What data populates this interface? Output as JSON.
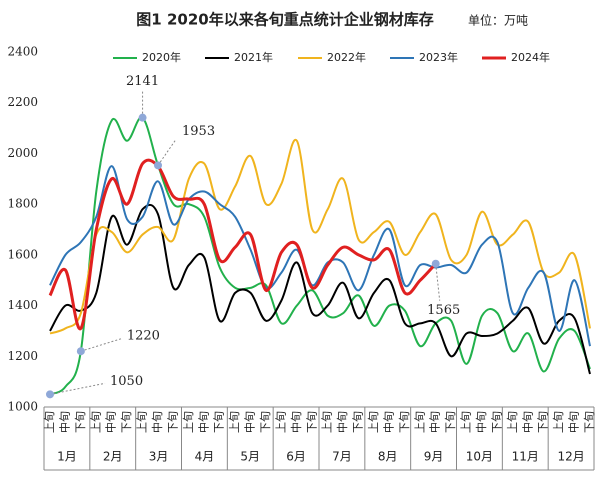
{
  "chart_data": {
    "type": "line",
    "title": "图1  2020年以来各旬重点统计企业钢材库存",
    "unit": "单位：万吨",
    "categories": [
      "上旬",
      "中旬",
      "下旬",
      "上旬",
      "中旬",
      "下旬",
      "上旬",
      "中旬",
      "下旬",
      "上旬",
      "中旬",
      "下旬",
      "上旬",
      "中旬",
      "下旬",
      "上旬",
      "中旬",
      "下旬",
      "上旬",
      "中旬",
      "下旬",
      "上旬",
      "中旬",
      "下旬",
      "上旬",
      "中旬",
      "下旬",
      "上旬",
      "中旬",
      "下旬",
      "上旬",
      "中旬",
      "下旬",
      "上旬",
      "中旬",
      "下旬"
    ],
    "months": [
      "1月",
      "2月",
      "3月",
      "4月",
      "5月",
      "6月",
      "7月",
      "8月",
      "9月",
      "10月",
      "11月",
      "12月"
    ],
    "series": [
      {
        "name": "2020年",
        "color": "#22b14c",
        "values": [
          1050,
          1080,
          1220,
          1850,
          2130,
          2050,
          2141,
          1953,
          1800,
          1800,
          1750,
          1550,
          1470,
          1470,
          1480,
          1330,
          1400,
          1460,
          1360,
          1370,
          1440,
          1320,
          1400,
          1380,
          1240,
          1330,
          1340,
          1170,
          1360,
          1370,
          1220,
          1290,
          1140,
          1270,
          1300,
          1150
        ]
      },
      {
        "name": "2021年",
        "color": "#000000",
        "values": [
          1300,
          1400,
          1380,
          1450,
          1750,
          1640,
          1780,
          1760,
          1470,
          1560,
          1590,
          1340,
          1450,
          1450,
          1340,
          1420,
          1570,
          1370,
          1400,
          1490,
          1350,
          1450,
          1500,
          1330,
          1330,
          1330,
          1200,
          1290,
          1280,
          1290,
          1340,
          1390,
          1250,
          1340,
          1350,
          1130
        ]
      },
      {
        "name": "2022年",
        "color": "#f0b41e",
        "values": [
          1290,
          1310,
          1370,
          1680,
          1690,
          1610,
          1680,
          1710,
          1660,
          1900,
          1960,
          1780,
          1870,
          1990,
          1800,
          1880,
          2050,
          1700,
          1780,
          1900,
          1660,
          1690,
          1730,
          1600,
          1690,
          1760,
          1580,
          1600,
          1770,
          1640,
          1680,
          1730,
          1530,
          1530,
          1600,
          1310
        ]
      },
      {
        "name": "2023年",
        "color": "#2e75b6",
        "values": [
          1480,
          1600,
          1650,
          1750,
          1950,
          1740,
          1750,
          1890,
          1720,
          1820,
          1850,
          1800,
          1750,
          1620,
          1470,
          1530,
          1620,
          1480,
          1570,
          1570,
          1460,
          1600,
          1700,
          1480,
          1560,
          1550,
          1560,
          1530,
          1640,
          1650,
          1370,
          1470,
          1530,
          1300,
          1500,
          1240
        ]
      },
      {
        "name": "2024年",
        "color": "#e02020",
        "values": [
          1440,
          1540,
          1310,
          1700,
          1900,
          1800,
          1960,
          1950,
          1830,
          1820,
          1800,
          1580,
          1630,
          1680,
          1460,
          1610,
          1640,
          1470,
          1560,
          1630,
          1600,
          1580,
          1620,
          1450,
          1500,
          1565,
          null,
          null,
          null,
          null,
          null,
          null,
          null,
          null,
          null,
          null
        ]
      }
    ],
    "annotations": [
      {
        "series": 0,
        "index": 6
      },
      {
        "series": 0,
        "index": 7
      },
      {
        "series": 0,
        "index": 2
      },
      {
        "series": 0,
        "index": 0
      },
      {
        "series": 4,
        "index": 25
      }
    ],
    "ylim": [
      1000,
      2400
    ],
    "yticks": [
      1000,
      1200,
      1400,
      1600,
      1800,
      2000,
      2200,
      2400
    ],
    "grid": false,
    "legend": "top"
  }
}
